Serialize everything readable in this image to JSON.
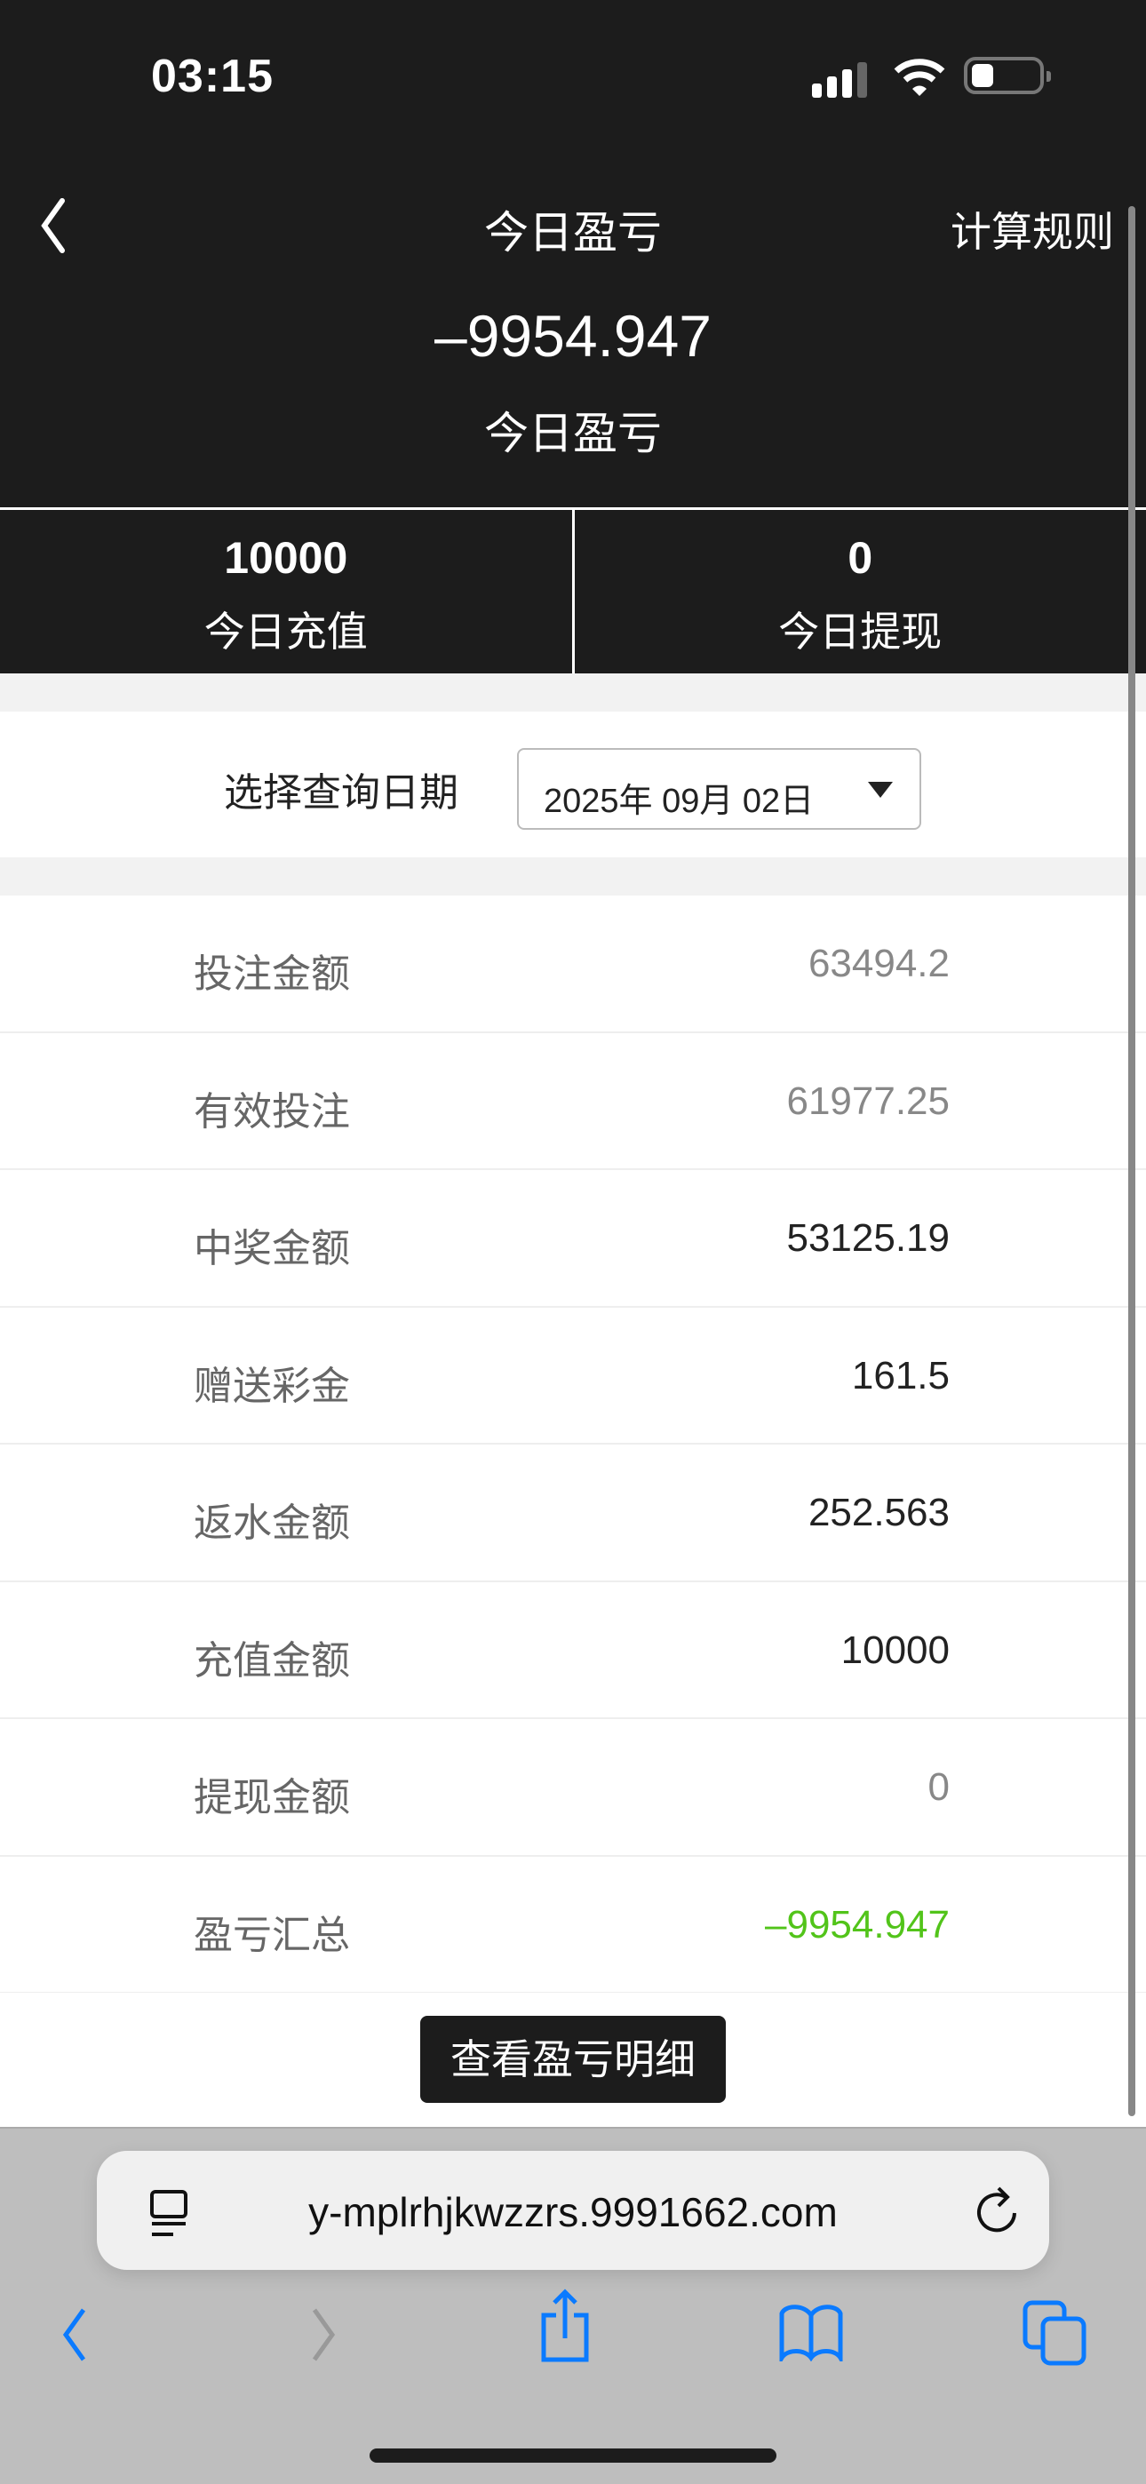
{
  "status_bar": {
    "time": "03:15"
  },
  "header": {
    "title": "今日盈亏",
    "rules_label": "计算规则",
    "total": "–9954.947",
    "total_label": "今日盈亏"
  },
  "stats": [
    {
      "value": "10000",
      "label": "今日充值"
    },
    {
      "value": "0",
      "label": "今日提现"
    }
  ],
  "date_filter": {
    "label": "选择查询日期",
    "value": "2025年 09月 02日"
  },
  "rows": [
    {
      "label": "投注金额",
      "value": "63494.2",
      "color": "#888888"
    },
    {
      "label": "有效投注",
      "value": "61977.25",
      "color": "#888888"
    },
    {
      "label": "中奖金额",
      "value": "53125.19",
      "color": "#222222"
    },
    {
      "label": "赠送彩金",
      "value": "161.5",
      "color": "#222222"
    },
    {
      "label": "返水金额",
      "value": "252.563",
      "color": "#222222"
    },
    {
      "label": "充值金额",
      "value": "10000",
      "color": "#222222"
    },
    {
      "label": "提现金额",
      "value": "0",
      "color": "#888888"
    },
    {
      "label": "盈亏汇总",
      "value": "–9954.947",
      "color": "#52c41a"
    }
  ],
  "detail_button": "查看盈亏明细",
  "browser": {
    "url": "y-mplrhjkwzzrs.9991662.com",
    "accent": "#0a7aff"
  }
}
